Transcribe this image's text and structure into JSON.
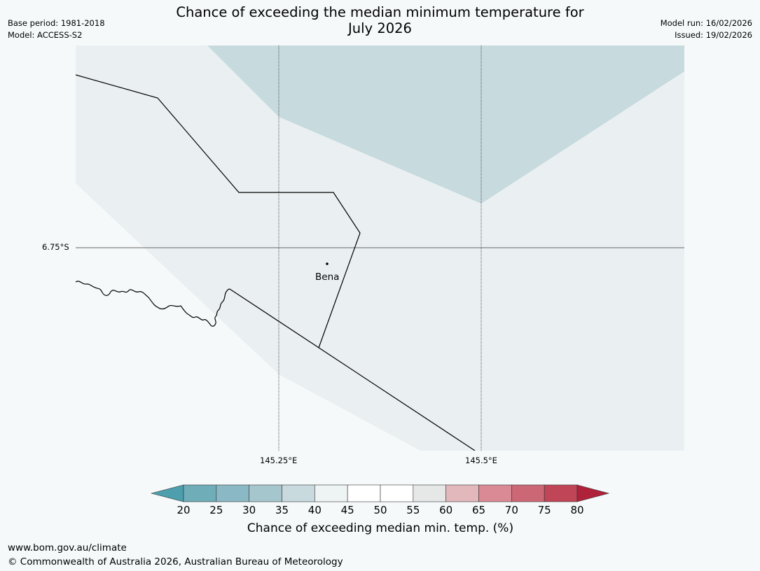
{
  "header": {
    "title_line1": "Chance of exceeding the median minimum temperature for",
    "title_line2": "July 2026",
    "base_period": "Base period: 1981-2018",
    "model": "Model: ACCESS-S2",
    "model_run": "Model run: 16/02/2026",
    "issued": "Issued: 19/02/2026"
  },
  "map": {
    "lat_label": "6.75°S",
    "lon_labels": [
      "145.25°E",
      "145.5°E"
    ],
    "places": [
      {
        "name": "Bena"
      }
    ],
    "colors": {
      "background": "#f5f9fa",
      "band_40_45": "#eaf0f2",
      "band_35_40": "#c7dade",
      "boundary": "#000000",
      "gridline": "#555555"
    }
  },
  "colorbar": {
    "ticks": [
      "20",
      "25",
      "30",
      "35",
      "40",
      "45",
      "50",
      "55",
      "60",
      "65",
      "70",
      "75",
      "80"
    ],
    "colors": [
      "#4d9fae",
      "#6fadb9",
      "#8ab9c5",
      "#a6c6ce",
      "#c8dade",
      "#eef3f4",
      "#ffffff",
      "#ffffff",
      "#e6e8e8",
      "#e3b8bd",
      "#d98a94",
      "#cc6775",
      "#c04556",
      "#b0213a"
    ],
    "label": "Chance of exceeding median min. temp. (%)"
  },
  "footer": {
    "url": "www.bom.gov.au/climate",
    "copyright": "© Commonwealth of Australia 2026, Australian Bureau of Meteorology"
  }
}
